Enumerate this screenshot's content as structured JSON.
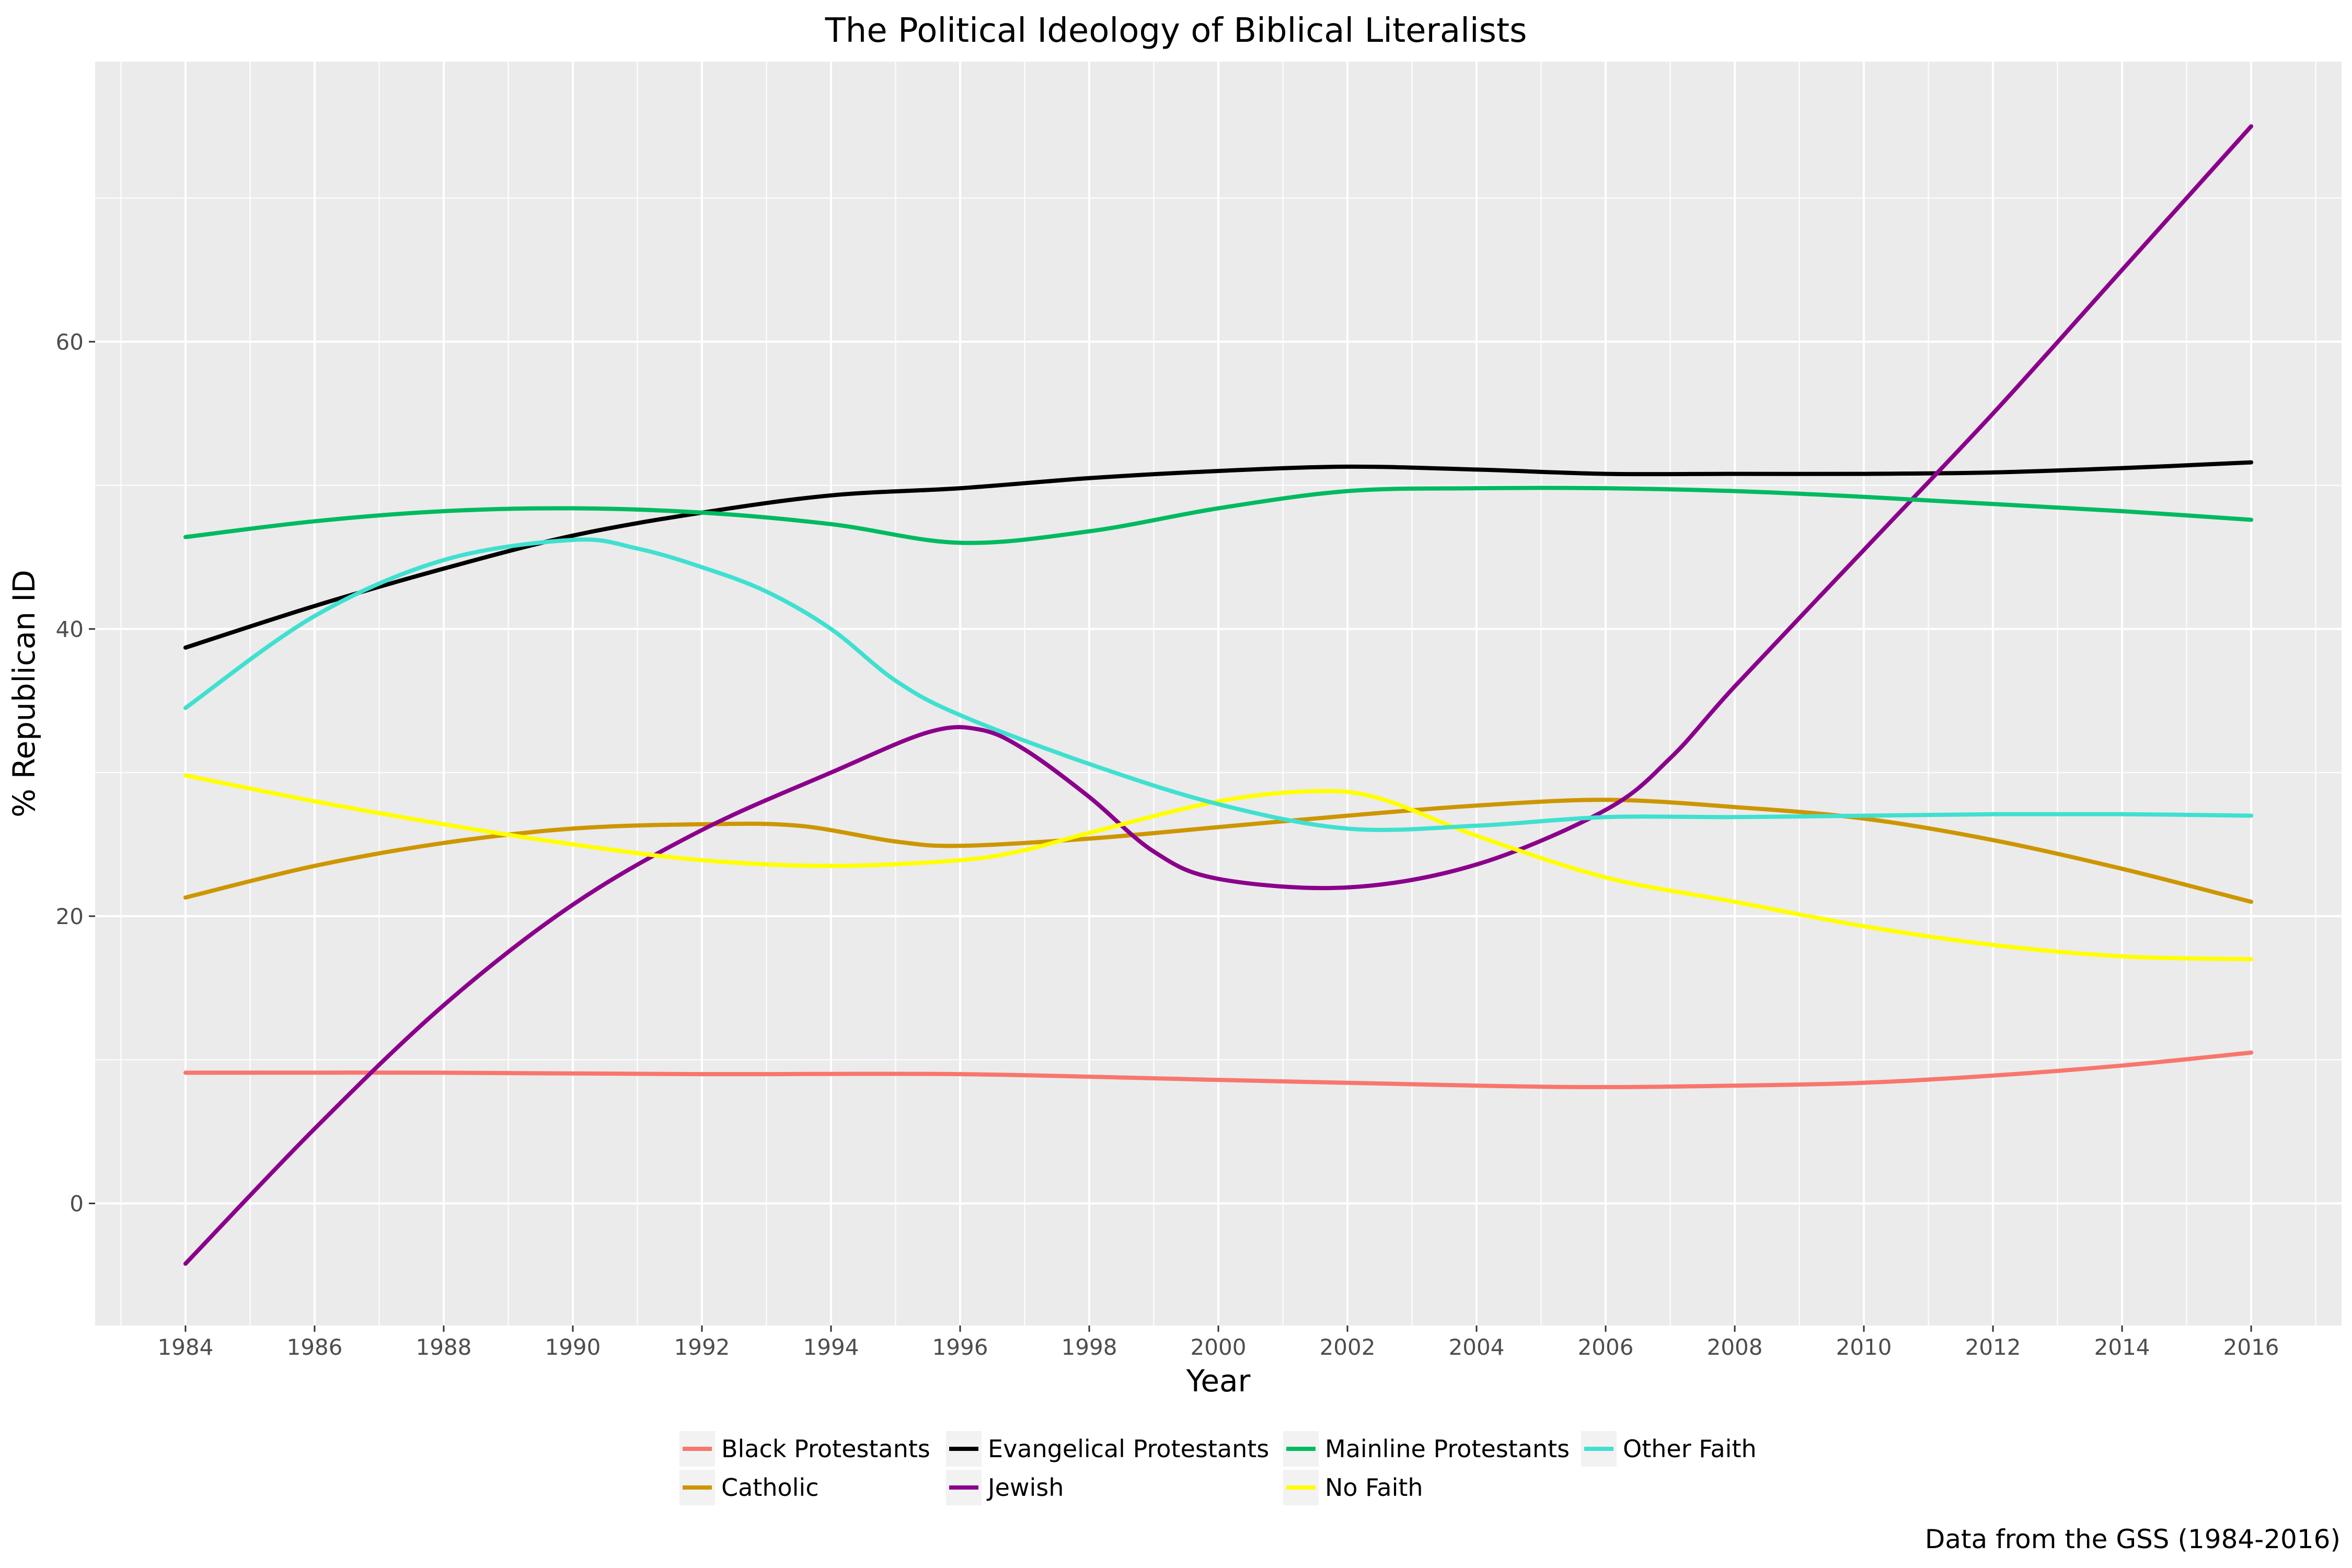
{
  "chart_data": {
    "type": "line",
    "title": "The Political Ideology of Biblical Literalists",
    "xlabel": "Year",
    "ylabel": "% Republican ID",
    "caption": "Data from the GSS (1984-2016)",
    "xlim": [
      1982.6,
      2017.4
    ],
    "ylim": [
      -8.5,
      79.5
    ],
    "x_ticks": [
      1984,
      1986,
      1988,
      1990,
      1992,
      1994,
      1996,
      1998,
      2000,
      2002,
      2004,
      2006,
      2008,
      2010,
      2012,
      2014,
      2016
    ],
    "y_ticks": [
      0,
      20,
      40,
      60
    ],
    "grid": true,
    "legend_position": "bottom",
    "series": [
      {
        "name": "Black Protestants",
        "color": "#F8766D",
        "points": [
          [
            1984,
            9.1
          ],
          [
            1988,
            9.1
          ],
          [
            1992,
            9.0
          ],
          [
            1996,
            9.0
          ],
          [
            2000,
            8.6
          ],
          [
            2004,
            8.2
          ],
          [
            2006,
            8.1
          ],
          [
            2008,
            8.2
          ],
          [
            2010,
            8.4
          ],
          [
            2012,
            8.9
          ],
          [
            2014,
            9.6
          ],
          [
            2016,
            10.5
          ]
        ]
      },
      {
        "name": "Catholic",
        "color": "#CD9600",
        "points": [
          [
            1984,
            21.3
          ],
          [
            1986,
            23.5
          ],
          [
            1988,
            25.1
          ],
          [
            1990,
            26.1
          ],
          [
            1992,
            26.4
          ],
          [
            1993.5,
            26.3
          ],
          [
            1995,
            25.2
          ],
          [
            1996,
            24.9
          ],
          [
            1998,
            25.4
          ],
          [
            2000,
            26.2
          ],
          [
            2002,
            27.0
          ],
          [
            2004,
            27.7
          ],
          [
            2006,
            28.1
          ],
          [
            2008,
            27.6
          ],
          [
            2010,
            26.8
          ],
          [
            2012,
            25.3
          ],
          [
            2014,
            23.3
          ],
          [
            2016,
            21.0
          ]
        ]
      },
      {
        "name": "Evangelical Protestants",
        "color": "#000000",
        "points": [
          [
            1984,
            38.7
          ],
          [
            1986,
            41.6
          ],
          [
            1988,
            44.2
          ],
          [
            1990,
            46.5
          ],
          [
            1992,
            48.1
          ],
          [
            1994,
            49.3
          ],
          [
            1996,
            49.8
          ],
          [
            1998,
            50.5
          ],
          [
            2000,
            51.0
          ],
          [
            2002,
            51.3
          ],
          [
            2004,
            51.1
          ],
          [
            2006,
            50.8
          ],
          [
            2008,
            50.8
          ],
          [
            2010,
            50.8
          ],
          [
            2012,
            50.9
          ],
          [
            2014,
            51.2
          ],
          [
            2016,
            51.6
          ]
        ]
      },
      {
        "name": "Jewish",
        "color": "#8B008B",
        "points": [
          [
            1984,
            -4.2
          ],
          [
            1986,
            5.2
          ],
          [
            1988,
            13.8
          ],
          [
            1990,
            20.8
          ],
          [
            1992,
            26.0
          ],
          [
            1994,
            30.0
          ],
          [
            1995.5,
            32.8
          ],
          [
            1996.3,
            33.0
          ],
          [
            1997,
            31.6
          ],
          [
            1998,
            28.3
          ],
          [
            1999,
            24.5
          ],
          [
            2000,
            22.6
          ],
          [
            2002,
            22.0
          ],
          [
            2004,
            23.6
          ],
          [
            2006,
            27.4
          ],
          [
            2007,
            31.0
          ],
          [
            2008,
            36.0
          ],
          [
            2010,
            45.5
          ],
          [
            2012,
            55.0
          ],
          [
            2014,
            65.0
          ],
          [
            2016,
            75.0
          ]
        ]
      },
      {
        "name": "Mainline Protestants",
        "color": "#00BA60",
        "points": [
          [
            1984,
            46.4
          ],
          [
            1986,
            47.5
          ],
          [
            1988,
            48.2
          ],
          [
            1990,
            48.4
          ],
          [
            1992,
            48.1
          ],
          [
            1994,
            47.3
          ],
          [
            1996,
            46.0
          ],
          [
            1998,
            46.8
          ],
          [
            2000,
            48.4
          ],
          [
            2002,
            49.6
          ],
          [
            2004,
            49.8
          ],
          [
            2006,
            49.8
          ],
          [
            2008,
            49.6
          ],
          [
            2010,
            49.2
          ],
          [
            2012,
            48.7
          ],
          [
            2014,
            48.2
          ],
          [
            2016,
            47.6
          ]
        ]
      },
      {
        "name": "No Faith",
        "color": "#FFFF00",
        "points": [
          [
            1984,
            29.8
          ],
          [
            1986,
            28.0
          ],
          [
            1988,
            26.4
          ],
          [
            1990,
            25.0
          ],
          [
            1992,
            23.9
          ],
          [
            1994,
            23.5
          ],
          [
            1996,
            23.9
          ],
          [
            1997,
            24.6
          ],
          [
            1998,
            25.8
          ],
          [
            2000,
            28.0
          ],
          [
            2001.5,
            28.7
          ],
          [
            2002.5,
            28.2
          ],
          [
            2004,
            25.6
          ],
          [
            2006,
            22.7
          ],
          [
            2008,
            21.0
          ],
          [
            2010,
            19.3
          ],
          [
            2012,
            18.0
          ],
          [
            2014,
            17.2
          ],
          [
            2016,
            17.0
          ]
        ]
      },
      {
        "name": "Other Faith",
        "color": "#40E0D0",
        "points": [
          [
            1984,
            34.5
          ],
          [
            1986,
            40.9
          ],
          [
            1988,
            44.8
          ],
          [
            1990,
            46.2
          ],
          [
            1991,
            45.6
          ],
          [
            1992,
            44.3
          ],
          [
            1993,
            42.6
          ],
          [
            1994,
            40.0
          ],
          [
            1995,
            36.4
          ],
          [
            1996,
            34.0
          ],
          [
            1998,
            30.6
          ],
          [
            2000,
            27.8
          ],
          [
            2002,
            26.1
          ],
          [
            2004,
            26.3
          ],
          [
            2006,
            26.9
          ],
          [
            2008,
            26.9
          ],
          [
            2010,
            27.0
          ],
          [
            2012,
            27.1
          ],
          [
            2014,
            27.1
          ],
          [
            2016,
            27.0
          ]
        ]
      }
    ]
  }
}
